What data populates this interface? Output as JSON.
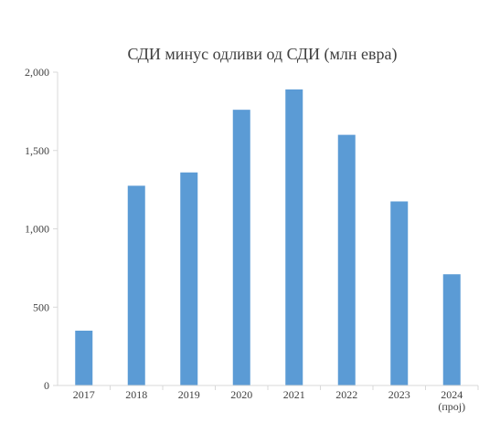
{
  "chart_data": {
    "type": "bar",
    "title": "СДИ минус одливи од СДИ (млн евра)",
    "xlabel": "",
    "ylabel": "",
    "categories": [
      "2017",
      "2018",
      "2019",
      "2020",
      "2021",
      "2022",
      "2023",
      "2024"
    ],
    "category_sublabels": [
      "",
      "",
      "",
      "",
      "",
      "",
      "",
      "(проj)"
    ],
    "values": [
      350,
      1275,
      1360,
      1760,
      1890,
      1600,
      1175,
      710
    ],
    "ylim": [
      0,
      2000
    ],
    "yticks": [
      0,
      500,
      1000,
      1500,
      2000
    ],
    "ytick_labels": [
      "0",
      "500",
      "1,000",
      "1,500",
      "2,000"
    ],
    "grid": false,
    "legend": "none",
    "colors": {
      "bar": "#5b9bd5",
      "axis": "#d9d9d9",
      "text": "#404040",
      "title": "#404040"
    }
  }
}
